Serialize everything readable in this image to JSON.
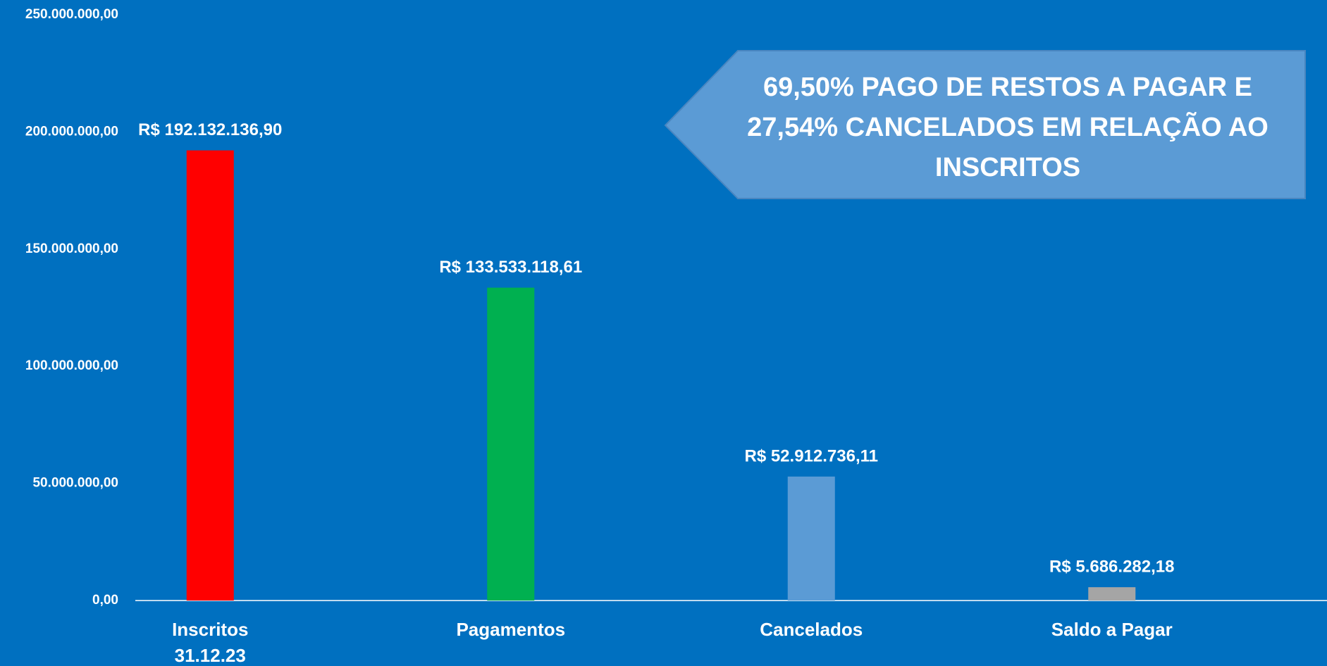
{
  "chart_data": {
    "type": "bar",
    "categories": [
      "Inscritos\n31.12.23",
      "Pagamentos",
      "Cancelados",
      "Saldo a Pagar"
    ],
    "values": [
      192132136.9,
      133533118.61,
      52912736.11,
      5686282.18
    ],
    "value_labels": [
      "R$ 192.132.136,90",
      "R$ 133.533.118,61",
      "R$ 52.912.736,11",
      "R$ 5.686.282,18"
    ],
    "colors": [
      "#ff0000",
      "#00b050",
      "#5b9bd5",
      "#a5a5a5"
    ],
    "ylim": [
      0,
      250000000
    ],
    "yticks": [
      {
        "value": 0,
        "label": "0,00"
      },
      {
        "value": 50000000,
        "label": "50.000.000,00"
      },
      {
        "value": 100000000,
        "label": "100.000.000,00"
      },
      {
        "value": 150000000,
        "label": "150.000.000,00"
      },
      {
        "value": 200000000,
        "label": "200.000.000,00"
      },
      {
        "value": 250000000,
        "label": "250.000.000,00"
      }
    ],
    "grid": false,
    "annotation": "69,50% PAGO DE RESTOS A PAGAR  E\n27,54% CANCELADOS EM RELAÇÃO AO\nINSCRITOS"
  }
}
